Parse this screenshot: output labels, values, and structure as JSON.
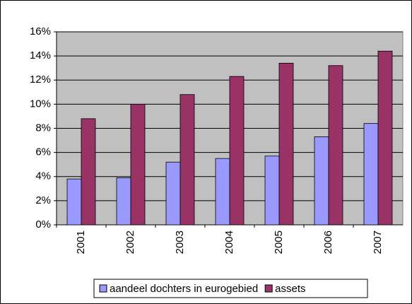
{
  "chart_data": {
    "type": "bar",
    "categories": [
      "2001",
      "2002",
      "2003",
      "2004",
      "2005",
      "2006",
      "2007"
    ],
    "series": [
      {
        "name": "aandeel dochters in eurogebied",
        "color": "#9999ff",
        "values": [
          3.8,
          3.9,
          5.2,
          5.5,
          5.7,
          7.3,
          8.4
        ]
      },
      {
        "name": "assets",
        "color": "#993366",
        "values": [
          8.8,
          10.0,
          10.8,
          12.3,
          13.4,
          13.2,
          14.4
        ]
      }
    ],
    "ylim": [
      0,
      16
    ],
    "yticks": [
      {
        "value": 0,
        "label": "0%"
      },
      {
        "value": 2,
        "label": "2%"
      },
      {
        "value": 4,
        "label": "4%"
      },
      {
        "value": 6,
        "label": "6%"
      },
      {
        "value": 8,
        "label": "8%"
      },
      {
        "value": 10,
        "label": "10%"
      },
      {
        "value": 12,
        "label": "12%"
      },
      {
        "value": 14,
        "label": "14%"
      },
      {
        "value": 16,
        "label": "16%"
      }
    ],
    "grid": true,
    "legend": "bottom"
  }
}
